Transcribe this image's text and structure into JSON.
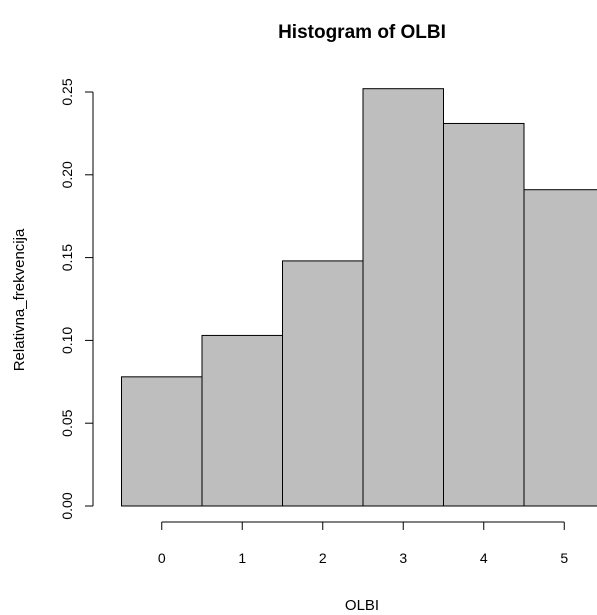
{
  "chart_data": {
    "type": "bar",
    "title": "Histogram of OLBI",
    "xlabel": "OLBI",
    "ylabel": "Relativna_frekvencija",
    "categories": [
      "0",
      "1",
      "2",
      "3",
      "4",
      "5"
    ],
    "values": [
      0.078,
      0.103,
      0.148,
      0.252,
      0.231,
      0.191
    ],
    "x_ticks": [
      "0",
      "1",
      "2",
      "3",
      "4",
      "5"
    ],
    "y_ticks": [
      "0.00",
      "0.05",
      "0.10",
      "0.15",
      "0.20",
      "0.25"
    ],
    "ylim": [
      0,
      0.25
    ],
    "grid": false,
    "bar_color": "#bebebe",
    "edge_color": "#000000"
  }
}
